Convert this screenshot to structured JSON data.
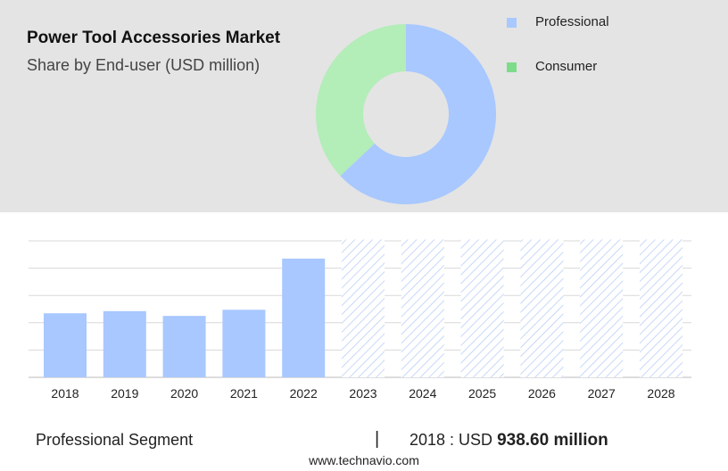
{
  "header": {
    "title": "Power Tool Accessories Market",
    "subtitle": "Share by End-user (USD million)"
  },
  "colors": {
    "professional": "#a8c8ff",
    "consumer": "#b3edb8",
    "consumer_legend": "#7ddc8a",
    "panel": "#e4e4e4",
    "grid": "#d8d8d8",
    "forecast_hatch": "#b9cff5"
  },
  "chart_data": [
    {
      "type": "pie",
      "variant": "donut",
      "title": "",
      "legend_position": "top-right",
      "slices": [
        {
          "name": "Professional",
          "value": 63
        },
        {
          "name": "Consumer",
          "value": 37
        }
      ]
    },
    {
      "type": "bar",
      "title": "",
      "xlabel": "",
      "ylabel": "",
      "grid": true,
      "ylim": [
        0,
        2000
      ],
      "categories": [
        "2018",
        "2019",
        "2020",
        "2021",
        "2022",
        "2023",
        "2024",
        "2025",
        "2026",
        "2027",
        "2028"
      ],
      "values": [
        938.6,
        970,
        900,
        990,
        1740,
        null,
        null,
        null,
        null,
        null,
        null
      ],
      "forecast_from": "2023",
      "forecast_display_value": 2020
    }
  ],
  "footer": {
    "segment": "Professional Segment",
    "divider": "|",
    "year_label": "2018 : USD",
    "value": "938.60 million",
    "source": "www.technavio.com"
  }
}
